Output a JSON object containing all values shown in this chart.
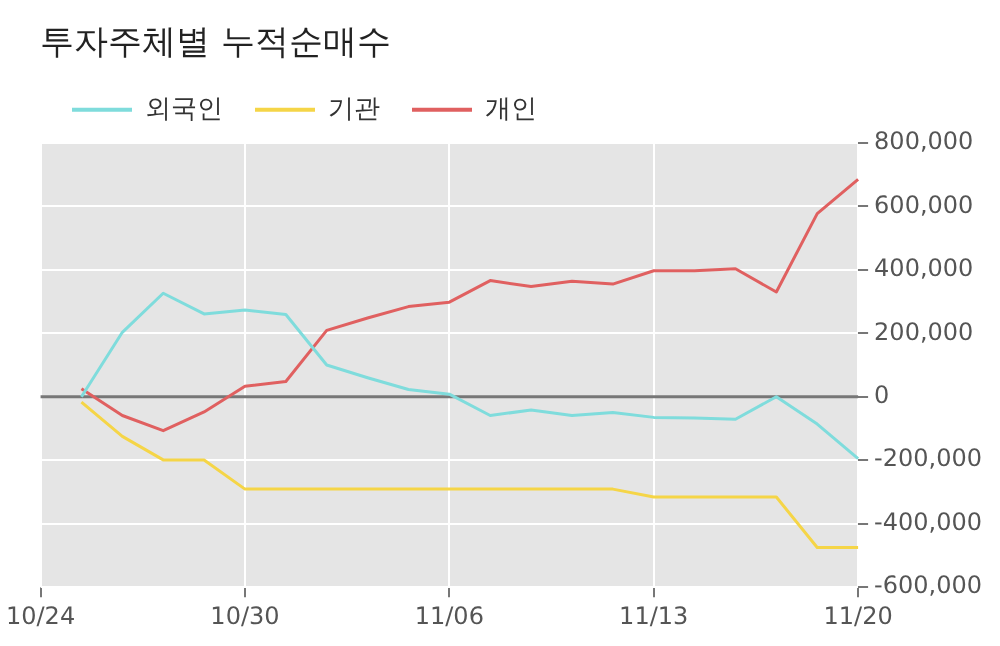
{
  "chart_data": {
    "type": "line",
    "title": "투자주체별 누적순매수",
    "categories": [
      "10/24",
      null,
      null,
      null,
      null,
      "10/30",
      null,
      null,
      null,
      null,
      "11/06",
      null,
      null,
      null,
      null,
      "11/13",
      null,
      null,
      null,
      null,
      "11/20"
    ],
    "series": [
      {
        "name": "외국인",
        "color": "#7fdcdc",
        "values": [
          null,
          0,
          203000,
          326000,
          261000,
          273000,
          259000,
          100000,
          60000,
          23000,
          8000,
          -59000,
          -42000,
          -59000,
          -50000,
          -65000,
          -67000,
          -71000,
          0,
          -86000,
          -195000
        ]
      },
      {
        "name": "기관",
        "color": "#f5d547",
        "values": [
          null,
          -17000,
          -125000,
          -199000,
          -199000,
          -291000,
          -291000,
          -291000,
          -291000,
          -291000,
          -291000,
          -291000,
          -291000,
          -291000,
          -291000,
          -316000,
          -316000,
          -316000,
          -316000,
          -475000,
          -475000
        ]
      },
      {
        "name": "개인",
        "color": "#e06060",
        "values": [
          null,
          25000,
          -59000,
          -107000,
          -48000,
          33000,
          48000,
          209000,
          248000,
          284000,
          298000,
          366000,
          347000,
          364000,
          355000,
          397000,
          397000,
          403000,
          330000,
          577000,
          685000
        ]
      }
    ],
    "ylim": [
      -600000,
      800000
    ],
    "yticks": [
      {
        "value": -600000,
        "label": "-600,000"
      },
      {
        "value": -400000,
        "label": "-400,000"
      },
      {
        "value": -200000,
        "label": "-200,000"
      },
      0,
      {
        "value": 200000,
        "label": "200,000"
      },
      {
        "value": 400000,
        "label": "400,000"
      },
      {
        "value": 600000,
        "label": "600,000"
      },
      {
        "value": 800000,
        "label": "800,000"
      }
    ],
    "ref_lines": [
      {
        "axis": "y",
        "value": 0,
        "color": "#777777"
      }
    ],
    "grid": true,
    "legend": "top left",
    "marker": "none",
    "line_style": "solid"
  }
}
